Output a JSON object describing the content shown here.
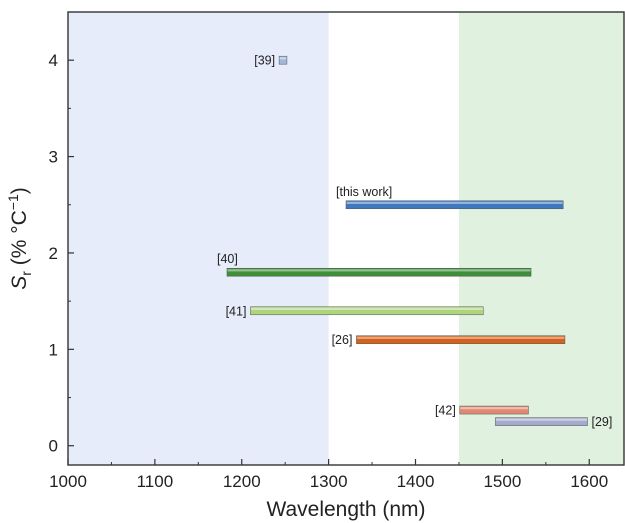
{
  "chart_data": {
    "type": "bar",
    "orientation": "horizontal-range",
    "title": "",
    "xlabel": "Wavelength (nm)",
    "ylabel_main": "S",
    "ylabel_sub": "r",
    "ylabel_rest": " (% °C",
    "ylabel_sup": "−1",
    "ylabel_close": ")",
    "xlim": [
      1000,
      1640
    ],
    "ylim": [
      -0.2,
      4.5
    ],
    "xticks": [
      1000,
      1100,
      1200,
      1300,
      1400,
      1500,
      1600
    ],
    "yticks": [
      0,
      1,
      2,
      3,
      4
    ],
    "xtick_labels": [
      "1000",
      "1100",
      "1200",
      "1300",
      "1400",
      "1500",
      "1600"
    ],
    "ytick_labels": [
      "0",
      "1",
      "2",
      "3",
      "4"
    ],
    "grid": false,
    "regions": [
      {
        "x_start": 1000,
        "x_end": 1300,
        "color": "#e7ecfa"
      },
      {
        "x_start": 1450,
        "x_end": 1640,
        "color": "#e1f1e0"
      }
    ],
    "series": [
      {
        "label": "[39]",
        "x_start": 1243,
        "x_end": 1252,
        "y": 4.0,
        "color": "#9fb8d6",
        "label_side": "left"
      },
      {
        "label": "[this work]",
        "x_start": 1320,
        "x_end": 1570,
        "y": 2.5,
        "color": "#3f78bf",
        "label_side": "above"
      },
      {
        "label": "[40]",
        "x_start": 1183,
        "x_end": 1533,
        "y": 1.8,
        "color": "#3e8e3a",
        "label_side": "above"
      },
      {
        "label": "[41]",
        "x_start": 1210,
        "x_end": 1478,
        "y": 1.4,
        "color": "#aed47e",
        "label_side": "left"
      },
      {
        "label": "[26]",
        "x_start": 1332,
        "x_end": 1572,
        "y": 1.1,
        "color": "#d2621e",
        "label_side": "left"
      },
      {
        "label": "[42]",
        "x_start": 1451,
        "x_end": 1530,
        "y": 0.37,
        "color": "#df8a70",
        "label_side": "left"
      },
      {
        "label": "[29]",
        "x_start": 1492,
        "x_end": 1598,
        "y": 0.25,
        "color": "#a5a9cc",
        "label_side": "right"
      }
    ]
  }
}
